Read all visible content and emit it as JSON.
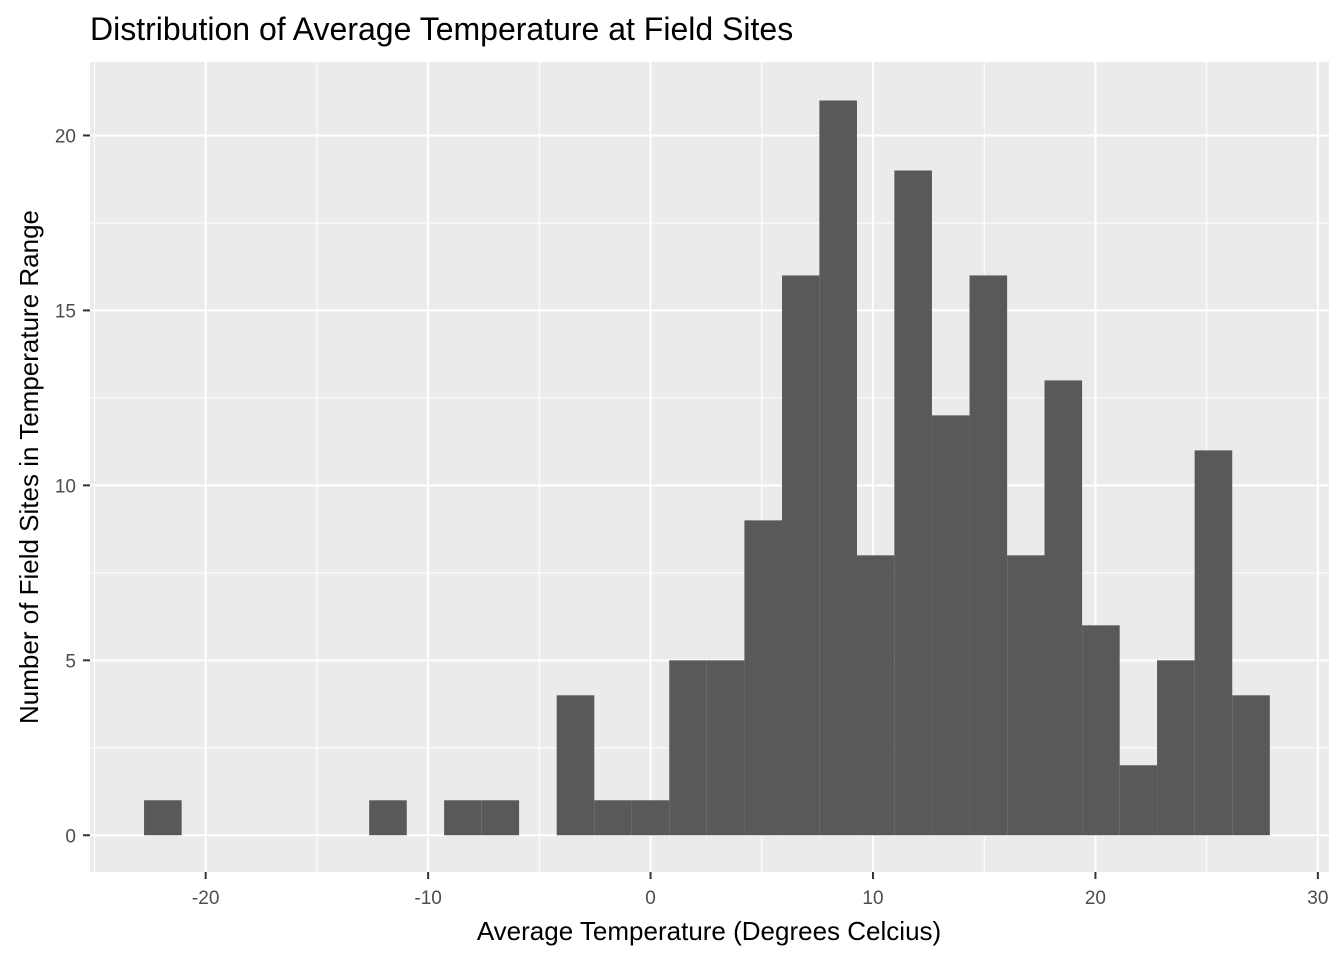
{
  "chart_data": {
    "type": "bar",
    "subtype": "histogram",
    "title": "Distribution of Average Temperature at Field Sites",
    "xlabel": "Average Temperature (Degrees Celcius)",
    "ylabel": "Number of Field Sites in Temperature Range",
    "xlim": [
      -25.2,
      30.5
    ],
    "ylim": [
      -1.05,
      22.1
    ],
    "x_ticks": [
      -20,
      -10,
      0,
      10,
      20,
      30
    ],
    "x_tick_labels": [
      "-20",
      "-10",
      "0",
      "10",
      "20",
      "30"
    ],
    "y_ticks": [
      0,
      5,
      10,
      15,
      20
    ],
    "y_tick_labels": [
      "0",
      "5",
      "10",
      "15",
      "20"
    ],
    "grid": true,
    "bar_color": "#595959",
    "panel_color": "#EBEBEB",
    "bins": [
      {
        "x0": -22.77,
        "x1": -21.08,
        "count": 1
      },
      {
        "x0": -12.65,
        "x1": -10.96,
        "count": 1
      },
      {
        "x0": -9.28,
        "x1": -7.59,
        "count": 1
      },
      {
        "x0": -7.59,
        "x1": -5.91,
        "count": 1
      },
      {
        "x0": -4.22,
        "x1": -2.53,
        "count": 4
      },
      {
        "x0": -2.53,
        "x1": -0.84,
        "count": 1
      },
      {
        "x0": -0.84,
        "x1": 0.84,
        "count": 1
      },
      {
        "x0": 0.84,
        "x1": 2.53,
        "count": 5
      },
      {
        "x0": 2.53,
        "x1": 4.22,
        "count": 5
      },
      {
        "x0": 4.22,
        "x1": 5.91,
        "count": 9
      },
      {
        "x0": 5.91,
        "x1": 7.59,
        "count": 16
      },
      {
        "x0": 7.59,
        "x1": 9.28,
        "count": 21
      },
      {
        "x0": 9.28,
        "x1": 10.96,
        "count": 8
      },
      {
        "x0": 10.96,
        "x1": 12.65,
        "count": 19
      },
      {
        "x0": 12.65,
        "x1": 14.34,
        "count": 12
      },
      {
        "x0": 14.34,
        "x1": 16.03,
        "count": 16
      },
      {
        "x0": 16.03,
        "x1": 17.71,
        "count": 8
      },
      {
        "x0": 17.71,
        "x1": 19.4,
        "count": 13
      },
      {
        "x0": 19.4,
        "x1": 21.09,
        "count": 6
      },
      {
        "x0": 21.09,
        "x1": 22.77,
        "count": 2
      },
      {
        "x0": 22.77,
        "x1": 24.46,
        "count": 5
      },
      {
        "x0": 24.46,
        "x1": 26.15,
        "count": 11
      },
      {
        "x0": 26.15,
        "x1": 27.84,
        "count": 4
      }
    ]
  }
}
